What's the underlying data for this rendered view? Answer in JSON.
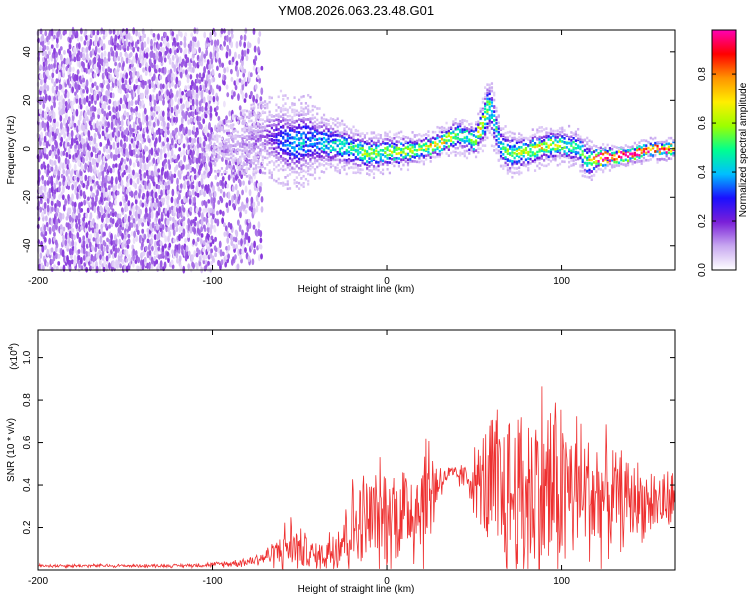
{
  "figure": {
    "title": "YM08.2026.063.23.48.G01"
  },
  "chart_data": [
    {
      "type": "heatmap",
      "title": "YM08.2026.063.23.48.G01",
      "xlabel": "Height of straight line (km)",
      "ylabel": "Frequency (Hz)",
      "xlim": [
        -200,
        165
      ],
      "ylim": [
        -50,
        49
      ],
      "xticks": [
        -200,
        -100,
        0,
        100
      ],
      "yticks": [
        -40,
        -20,
        0,
        20,
        40
      ],
      "colorbar": {
        "label": "Normalized spectral amplitude",
        "range": [
          0,
          0.98
        ],
        "ticks": [
          "0.0",
          "0.2",
          "0.4",
          "0.6",
          "0.8"
        ],
        "colors": [
          "#ffffff",
          "#c8a8f0",
          "#7a1fd8",
          "#1a10ff",
          "#00bfff",
          "#00ff90",
          "#9cff00",
          "#ffee00",
          "#ff9400",
          "#ff0000",
          "#ff00b4"
        ]
      },
      "ridge": {
        "x": [
          -100,
          -90,
          -80,
          -70,
          -60,
          -55,
          -50,
          -45,
          -40,
          -30,
          -20,
          -10,
          0,
          10,
          20,
          30,
          35,
          40,
          45,
          50,
          55,
          58,
          60,
          65,
          70,
          80,
          90,
          100,
          110,
          115,
          120,
          130,
          140,
          150,
          160,
          165
        ],
        "freq": [
          0,
          1,
          3,
          5,
          4,
          2,
          3,
          4,
          3,
          2,
          0,
          -2,
          -1,
          -1,
          0,
          2,
          4,
          6,
          5,
          3,
          10,
          18,
          15,
          2,
          -2,
          -1,
          1,
          2,
          0,
          -5,
          -4,
          -3,
          -2,
          0,
          0,
          0
        ],
        "spread": [
          6,
          7,
          9,
          10,
          12,
          11,
          12,
          11,
          9,
          7,
          6,
          6,
          5,
          5,
          4,
          4,
          4,
          5,
          5,
          5,
          7,
          9,
          8,
          6,
          6,
          5,
          5,
          5,
          5,
          6,
          4,
          3,
          3,
          3,
          3,
          3
        ],
        "peak_amplitude": [
          0.05,
          0.1,
          0.12,
          0.15,
          0.3,
          0.35,
          0.4,
          0.35,
          0.35,
          0.45,
          0.5,
          0.55,
          0.55,
          0.6,
          0.65,
          0.7,
          0.75,
          0.55,
          0.5,
          0.55,
          0.65,
          0.55,
          0.5,
          0.5,
          0.55,
          0.6,
          0.65,
          0.55,
          0.5,
          0.55,
          0.9,
          0.95,
          0.98,
          0.95,
          0.9,
          0.9
        ]
      },
      "noise_region_x": [
        -200,
        -72
      ]
    },
    {
      "type": "line",
      "xlabel": "Height of straight line (km)",
      "ylabel": "SNR (10 * v/v)",
      "y_multiplier_label": "(x10",
      "y_multiplier_exponent": "4",
      "y_multiplier_close": ")",
      "xlim": [
        -200,
        165
      ],
      "ylim": [
        0,
        1.13
      ],
      "xticks": [
        -200,
        -100,
        0,
        100
      ],
      "yticks": [
        "0.2",
        "0.4",
        "0.6",
        "0.8",
        "1.0"
      ],
      "color": "#ee3030",
      "envelope": {
        "x": [
          -200,
          -120,
          -100,
          -90,
          -80,
          -70,
          -65,
          -55,
          -50,
          -45,
          -40,
          -35,
          -30,
          -20,
          -10,
          0,
          10,
          20,
          25,
          30,
          35,
          45,
          55,
          60,
          65,
          70,
          80,
          90,
          100,
          110,
          120,
          130,
          140,
          150,
          165
        ],
        "base": [
          0.02,
          0.02,
          0.025,
          0.03,
          0.04,
          0.06,
          0.08,
          0.12,
          0.1,
          0.08,
          0.06,
          0.08,
          0.12,
          0.2,
          0.24,
          0.26,
          0.28,
          0.32,
          0.38,
          0.42,
          0.45,
          0.44,
          0.4,
          0.35,
          0.33,
          0.34,
          0.36,
          0.38,
          0.38,
          0.37,
          0.35,
          0.34,
          0.33,
          0.32,
          0.32
        ],
        "amp": [
          0.01,
          0.01,
          0.015,
          0.02,
          0.03,
          0.05,
          0.08,
          0.18,
          0.12,
          0.1,
          0.08,
          0.12,
          0.2,
          0.28,
          0.3,
          0.32,
          0.34,
          0.4,
          0.38,
          0.12,
          0.05,
          0.08,
          0.3,
          0.55,
          0.6,
          0.55,
          0.6,
          0.65,
          0.55,
          0.45,
          0.4,
          0.3,
          0.25,
          0.2,
          0.18
        ]
      }
    }
  ]
}
